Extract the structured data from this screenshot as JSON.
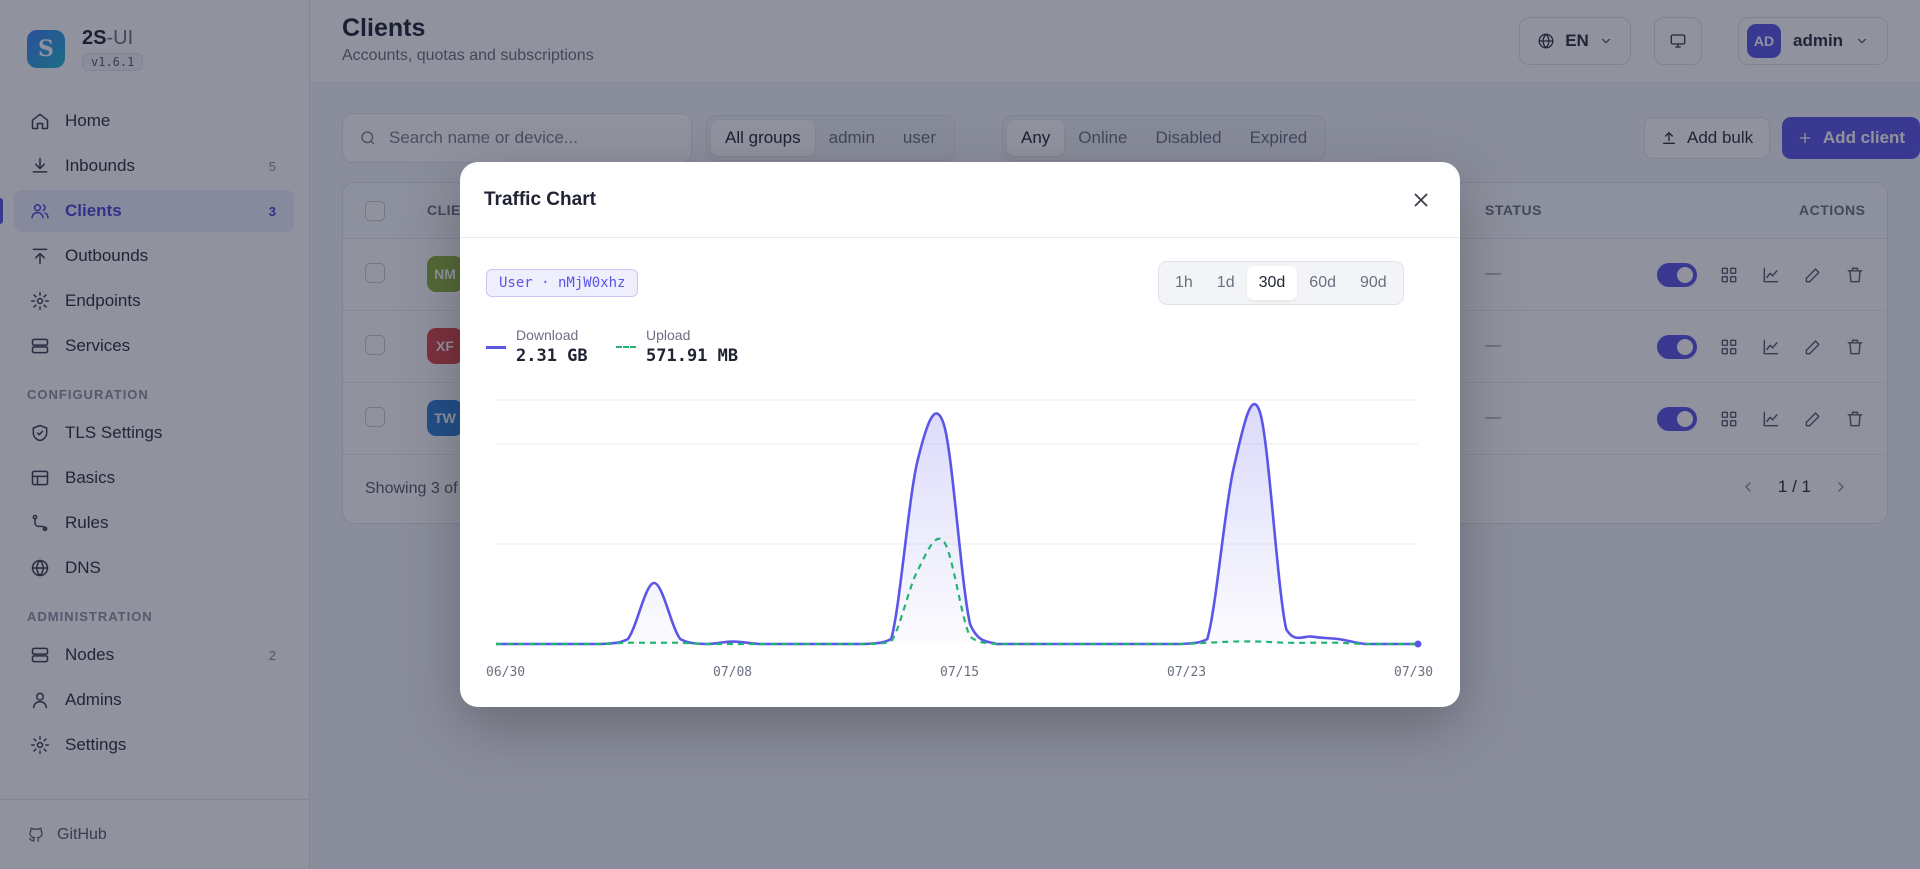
{
  "brand": {
    "name_main": "2S",
    "name_suffix": "-UI",
    "version": "v1.6.1"
  },
  "sidebar": {
    "items": [
      {
        "label": "Home",
        "icon": "home-icon",
        "count": ""
      },
      {
        "label": "Inbounds",
        "icon": "download-icon",
        "count": "5"
      },
      {
        "label": "Clients",
        "icon": "users-icon",
        "count": "3",
        "active": true
      },
      {
        "label": "Outbounds",
        "icon": "upload-icon",
        "count": ""
      },
      {
        "label": "Endpoints",
        "icon": "endpoint-icon",
        "count": ""
      },
      {
        "label": "Services",
        "icon": "server-icon",
        "count": ""
      }
    ],
    "config_title": "CONFIGURATION",
    "config_items": [
      {
        "label": "TLS Settings",
        "icon": "shield-icon"
      },
      {
        "label": "Basics",
        "icon": "table-icon"
      },
      {
        "label": "Rules",
        "icon": "route-icon"
      },
      {
        "label": "DNS",
        "icon": "globe-icon"
      }
    ],
    "admin_title": "ADMINISTRATION",
    "admin_items": [
      {
        "label": "Nodes",
        "icon": "server-icon",
        "count": "2"
      },
      {
        "label": "Admins",
        "icon": "user-icon",
        "count": ""
      },
      {
        "label": "Settings",
        "icon": "gear-icon",
        "count": ""
      }
    ],
    "footer": "GitHub"
  },
  "header": {
    "title": "Clients",
    "subtitle": "Accounts, quotas and subscriptions",
    "language": "EN",
    "username": "admin",
    "avatar_initials": "AD"
  },
  "toolbar": {
    "search_placeholder": "Search name or device...",
    "group_filters": [
      "All groups",
      "admin",
      "user"
    ],
    "status_filters": [
      "Any",
      "Online",
      "Disabled",
      "Expired"
    ],
    "add_bulk": "Add bulk",
    "add_client": "Add client"
  },
  "table": {
    "col_client": "CLIE",
    "col_status": "STATUS",
    "col_actions": "ACTIONS",
    "rows": [
      {
        "initials": "NM",
        "color": "#8db33a",
        "status": "—"
      },
      {
        "initials": "XF",
        "color": "#d84848",
        "status": "—"
      },
      {
        "initials": "TW",
        "color": "#2f7fd6",
        "status": "—"
      }
    ],
    "showing": "Showing 3 of",
    "page": "1 / 1"
  },
  "modal": {
    "title": "Traffic Chart",
    "user_badge": "User · nMjW0xhz",
    "ranges": [
      "1h",
      "1d",
      "30d",
      "60d",
      "90d"
    ],
    "active_range": "30d"
  },
  "chart_data": {
    "type": "line",
    "x_labels": [
      "06/30",
      "07/08",
      "07/15",
      "07/23",
      "07/30"
    ],
    "series": [
      {
        "name": "Download",
        "total": "2.31 GB",
        "color": "#5b55e8",
        "style": "solid",
        "values": [
          0,
          0,
          0,
          0,
          0,
          0.02,
          0.25,
          0.02,
          0,
          0.01,
          0,
          0,
          0,
          0,
          0,
          0.02,
          0.75,
          0.9,
          0.08,
          0,
          0,
          0,
          0,
          0,
          0,
          0,
          0,
          0.02,
          0.72,
          0.95,
          0.06,
          0.03,
          0.02,
          0,
          0,
          0
        ]
      },
      {
        "name": "Upload",
        "total": "571.91 MB",
        "color": "#22b573",
        "style": "dashed",
        "values": [
          0,
          0,
          0,
          0,
          0,
          0.005,
          0.005,
          0.005,
          0,
          0,
          0,
          0,
          0,
          0,
          0,
          0.01,
          0.3,
          0.42,
          0.03,
          0,
          0,
          0,
          0,
          0,
          0,
          0,
          0,
          0.005,
          0.01,
          0.01,
          0.005,
          0.005,
          0.005,
          0,
          0,
          0
        ]
      }
    ],
    "grid": true,
    "legend": "top-left"
  }
}
